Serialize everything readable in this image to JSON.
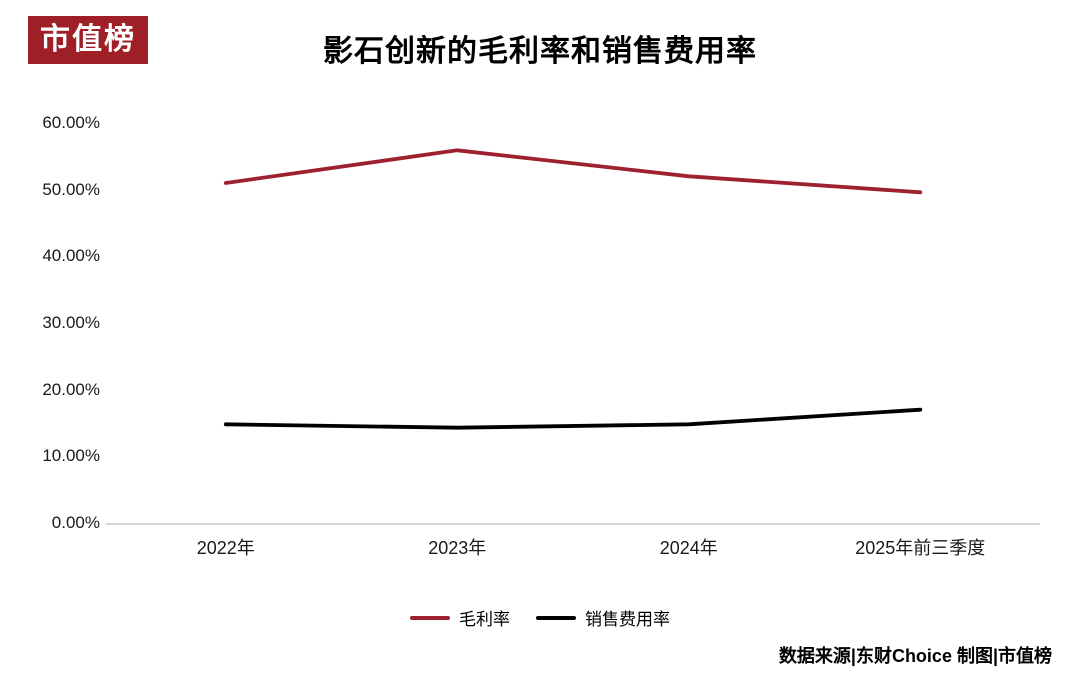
{
  "logo": {
    "text": "市值榜"
  },
  "footer": {
    "source_note": "数据来源|东财Choice  制图|市值榜"
  },
  "colors": {
    "logo_bg": "#9e1f26",
    "line_red": "#9e2130",
    "line_black": "#000000",
    "axis_gray": "#d6d6d6"
  },
  "chart_data": {
    "type": "line",
    "title": "影石创新的毛利率和销售费用率",
    "categories": [
      "2022年",
      "2023年",
      "2024年",
      "2025年前三季度"
    ],
    "series": [
      {
        "name": "毛利率",
        "color": "#9e2130",
        "values": [
          51.0,
          55.9,
          52.0,
          49.6
        ]
      },
      {
        "name": "销售费用率",
        "color": "#000000",
        "values": [
          14.8,
          14.3,
          14.8,
          17.0
        ]
      }
    ],
    "ylim": [
      0,
      60
    ],
    "yticks": [
      "60.00%",
      "50.00%",
      "40.00%",
      "30.00%",
      "20.00%",
      "10.00%",
      "0.00%"
    ],
    "ytick_format": "percent_2dp",
    "grid": false,
    "legend_position": "bottom"
  }
}
